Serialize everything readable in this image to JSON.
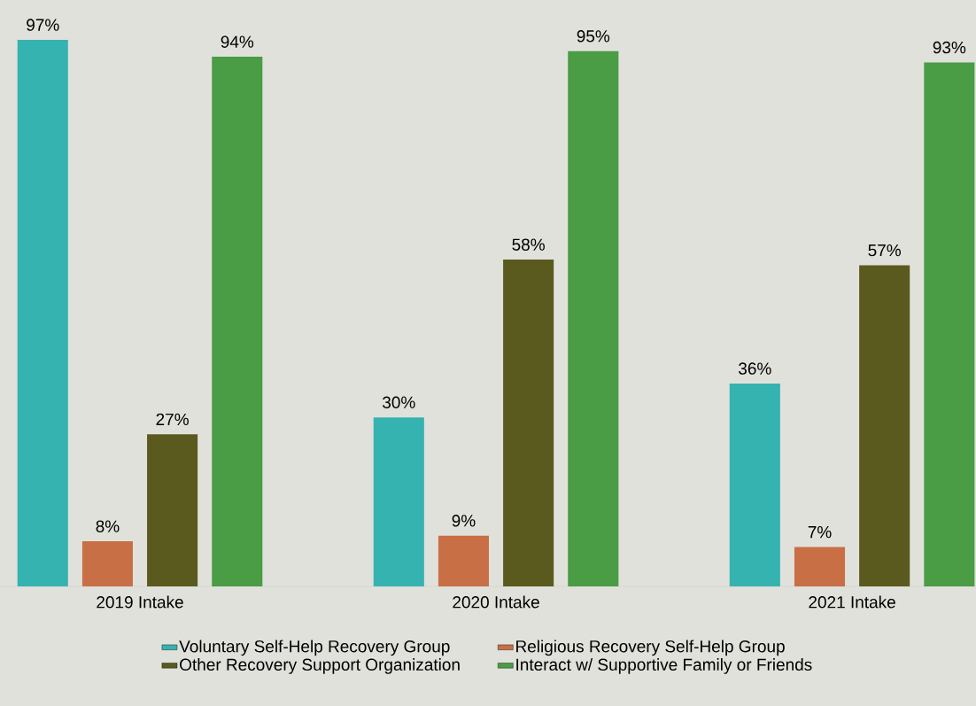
{
  "chart_data": {
    "type": "bar",
    "categories": [
      "2019 Intake",
      "2020 Intake",
      "2021 Intake"
    ],
    "series": [
      {
        "name": "Voluntary Self-Help Recovery Group",
        "color": "#35b3b1",
        "values": [
          97,
          30,
          36
        ],
        "value_labels": [
          "97%",
          "30%",
          "36%"
        ]
      },
      {
        "name": "Religious Recovery Self-Help Group",
        "color": "#c86f46",
        "values": [
          8,
          9,
          7
        ],
        "value_labels": [
          "8%",
          "9%",
          "7%"
        ]
      },
      {
        "name": "Other Recovery Support Organization",
        "color": "#5a5a1e",
        "values": [
          27,
          58,
          57
        ],
        "value_labels": [
          "27%",
          "58%",
          "57%"
        ]
      },
      {
        "name": "Interact w/ Supportive Family or Friends",
        "color": "#4a9c45",
        "values": [
          94,
          95,
          93
        ],
        "value_labels": [
          "94%",
          "95%",
          "93%"
        ]
      }
    ],
    "legend": "bottom"
  }
}
